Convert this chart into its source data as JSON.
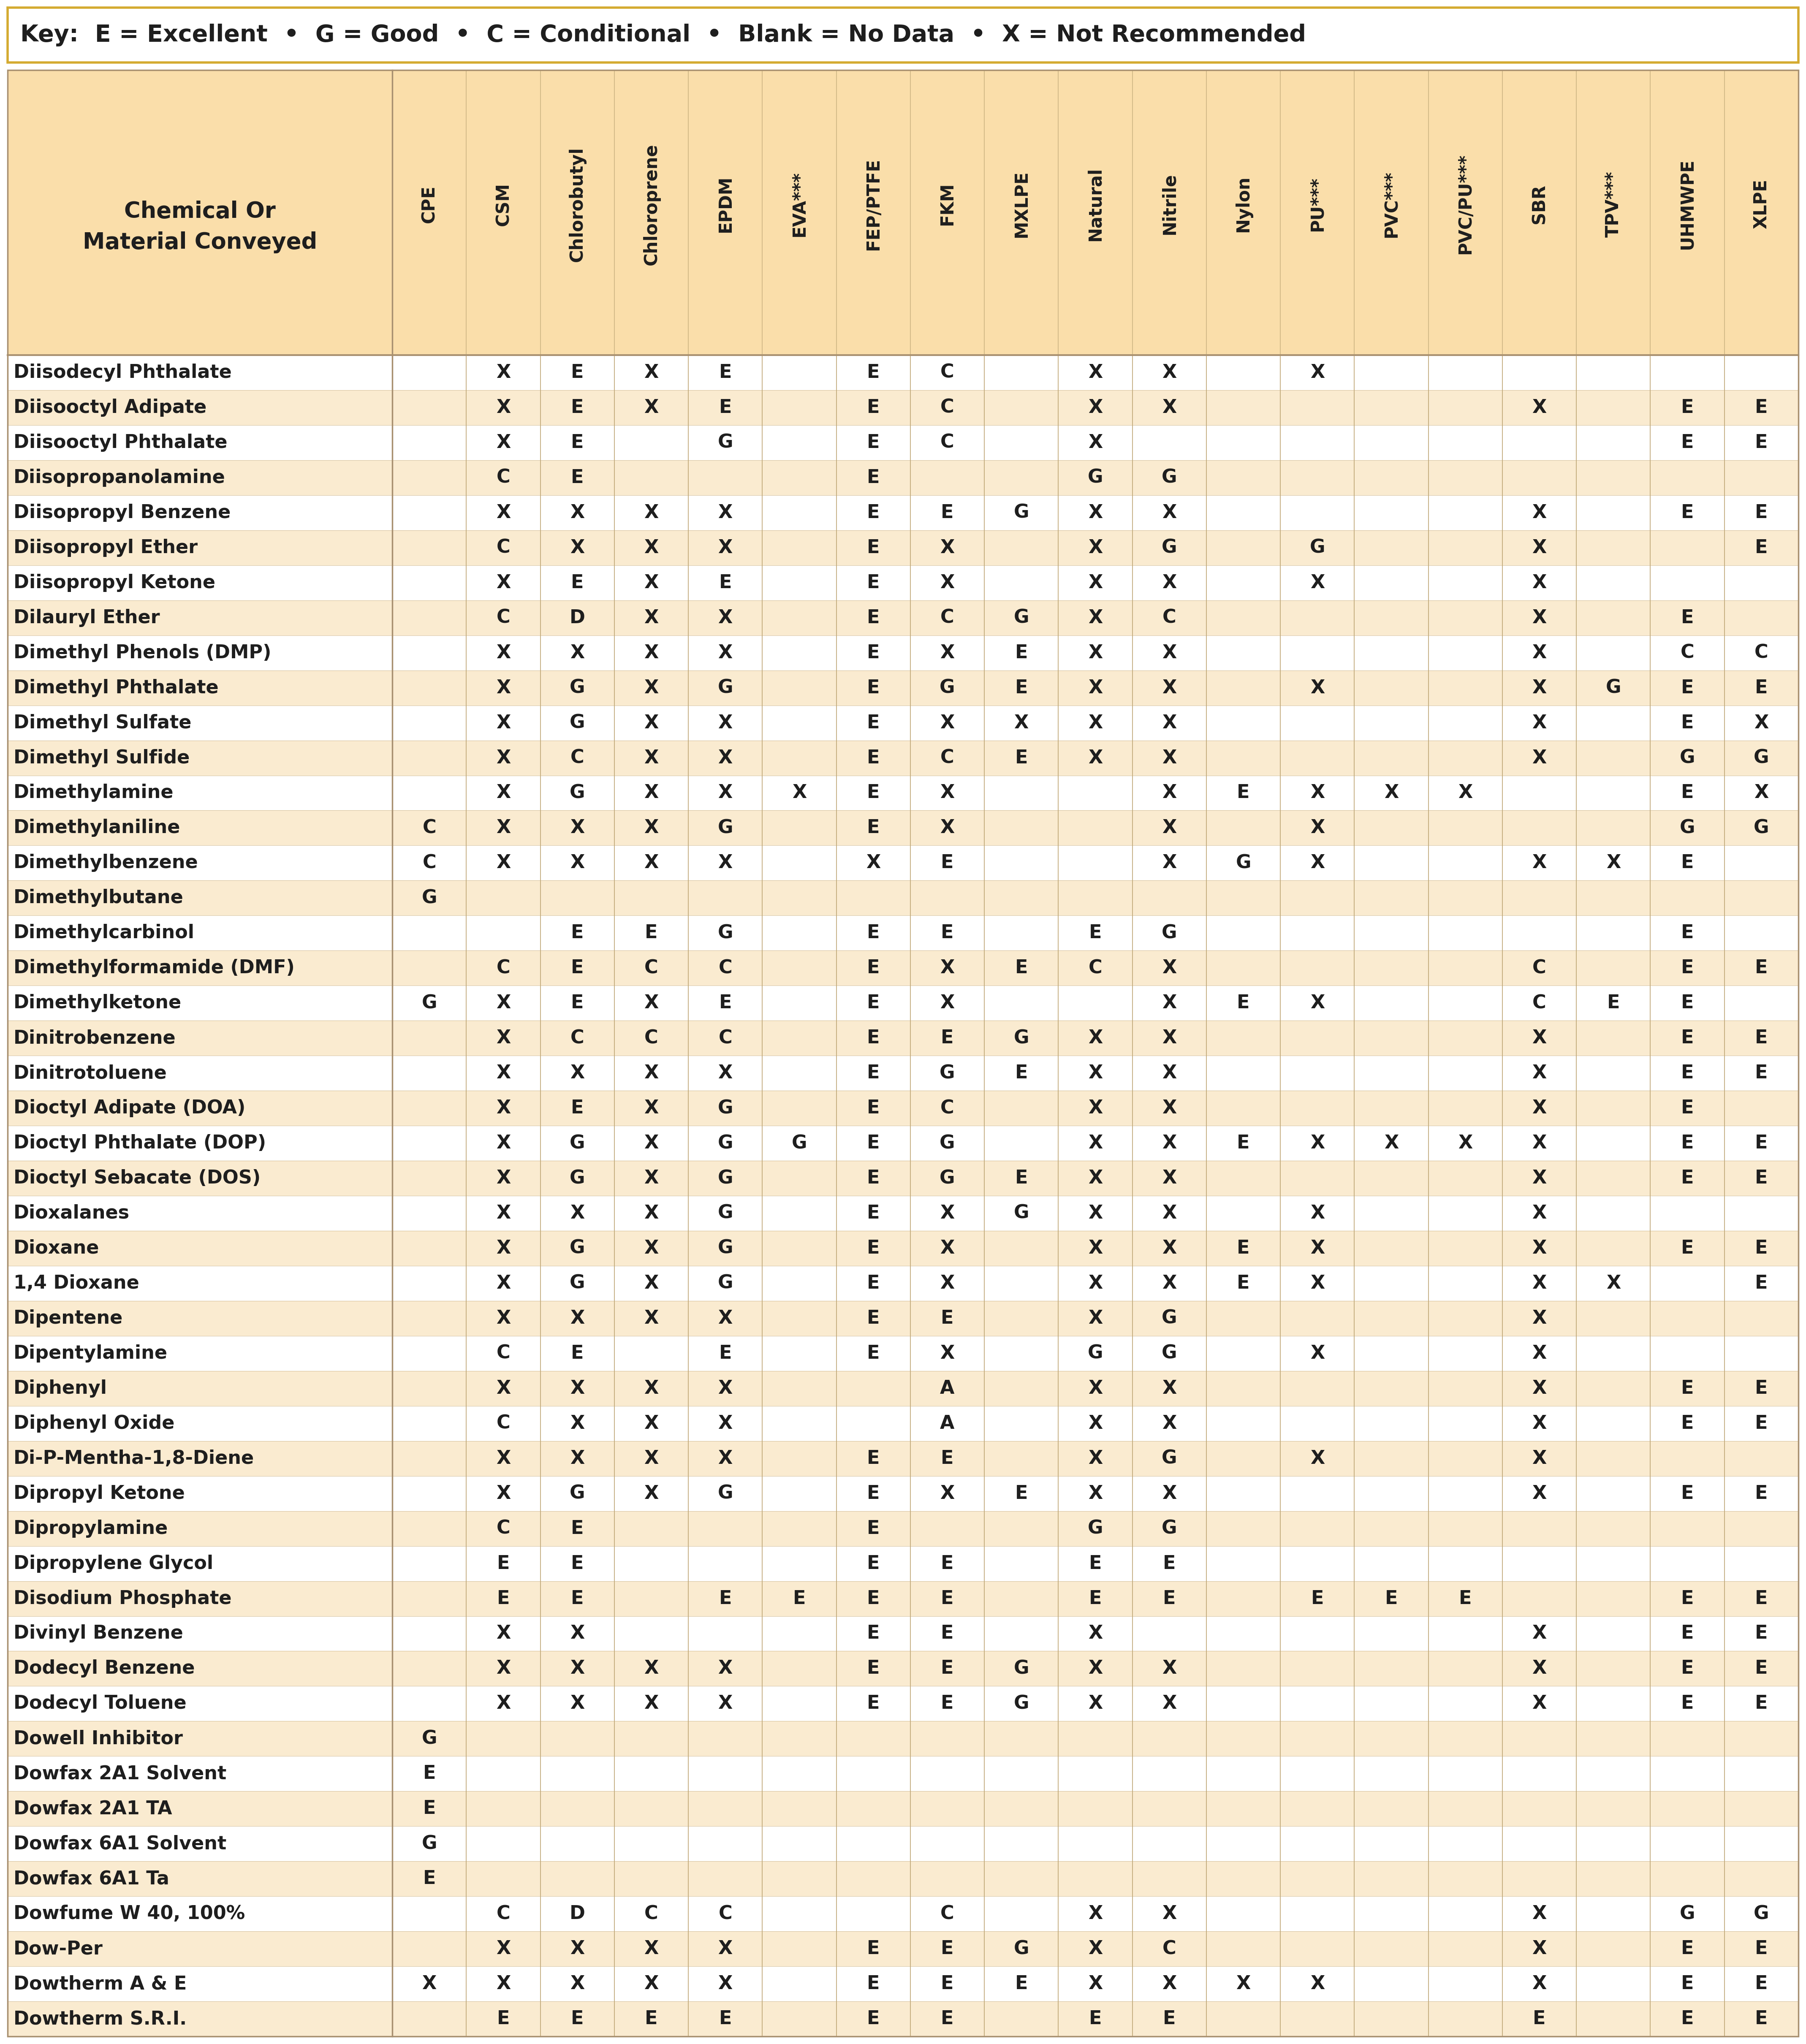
{
  "key_text": "Key:  E = Excellent  •  G = Good  •  C = Conditional  •  Blank = No Data  •  X = Not Recommended",
  "columns": [
    "CPE",
    "CSM",
    "Chlorobutyl",
    "Chloroprene",
    "EPDM",
    "EVA***",
    "FEP/PTFE",
    "FKM",
    "MXLPE",
    "Natural",
    "Nitrile",
    "Nylon",
    "PU***",
    "PVC***",
    "PVC/PU***",
    "SBR",
    "TPV***",
    "UHMWPE",
    "XLPE"
  ],
  "header_label": "Chemical Or\nMaterial Conveyed",
  "rows": [
    [
      "Diisodecyl Phthalate",
      "",
      "X",
      "E",
      "X",
      "E",
      "",
      "E",
      "C",
      "",
      "X",
      "X",
      "",
      "X",
      "",
      "",
      "",
      "",
      "",
      ""
    ],
    [
      "Diisooctyl Adipate",
      "",
      "X",
      "E",
      "X",
      "E",
      "",
      "E",
      "C",
      "",
      "X",
      "X",
      "",
      "",
      "",
      "",
      "X",
      "",
      "E",
      "E"
    ],
    [
      "Diisooctyl Phthalate",
      "",
      "X",
      "E",
      "",
      "G",
      "",
      "E",
      "C",
      "",
      "X",
      "",
      "",
      "",
      "",
      "",
      "",
      "",
      "E",
      "E"
    ],
    [
      "Diisopropanolamine",
      "",
      "C",
      "E",
      "",
      "",
      "",
      "E",
      "",
      "",
      "G",
      "G",
      "",
      "",
      "",
      "",
      "",
      "",
      "",
      ""
    ],
    [
      "Diisopropyl Benzene",
      "",
      "X",
      "X",
      "X",
      "X",
      "",
      "E",
      "E",
      "G",
      "X",
      "X",
      "",
      "",
      "",
      "",
      "X",
      "",
      "E",
      "E"
    ],
    [
      "Diisopropyl Ether",
      "",
      "C",
      "X",
      "X",
      "X",
      "",
      "E",
      "X",
      "",
      "X",
      "G",
      "",
      "G",
      "",
      "",
      "X",
      "",
      "",
      "E"
    ],
    [
      "Diisopropyl Ketone",
      "",
      "X",
      "E",
      "X",
      "E",
      "",
      "E",
      "X",
      "",
      "X",
      "X",
      "",
      "X",
      "",
      "",
      "X",
      "",
      "",
      ""
    ],
    [
      "Dilauryl Ether",
      "",
      "C",
      "D",
      "X",
      "X",
      "",
      "E",
      "C",
      "G",
      "X",
      "C",
      "",
      "",
      "",
      "",
      "X",
      "",
      "E",
      ""
    ],
    [
      "Dimethyl Phenols (DMP)",
      "",
      "X",
      "X",
      "X",
      "X",
      "",
      "E",
      "X",
      "E",
      "X",
      "X",
      "",
      "",
      "",
      "",
      "X",
      "",
      "C",
      "C"
    ],
    [
      "Dimethyl Phthalate",
      "",
      "X",
      "G",
      "X",
      "G",
      "",
      "E",
      "G",
      "E",
      "X",
      "X",
      "",
      "X",
      "",
      "",
      "X",
      "G",
      "E",
      "E"
    ],
    [
      "Dimethyl Sulfate",
      "",
      "X",
      "G",
      "X",
      "X",
      "",
      "E",
      "X",
      "X",
      "X",
      "X",
      "",
      "",
      "",
      "",
      "X",
      "",
      "E",
      "X"
    ],
    [
      "Dimethyl Sulfide",
      "",
      "X",
      "C",
      "X",
      "X",
      "",
      "E",
      "C",
      "E",
      "X",
      "X",
      "",
      "",
      "",
      "",
      "X",
      "",
      "G",
      "G"
    ],
    [
      "Dimethylamine",
      "",
      "X",
      "G",
      "X",
      "X",
      "X",
      "E",
      "X",
      "",
      "",
      "X",
      "E",
      "X",
      "X",
      "X",
      "",
      "",
      "E",
      "X"
    ],
    [
      "Dimethylaniline",
      "C",
      "X",
      "X",
      "X",
      "G",
      "",
      "E",
      "X",
      "",
      "",
      "X",
      "",
      "X",
      "",
      "",
      "",
      "",
      "G",
      "G"
    ],
    [
      "Dimethylbenzene",
      "C",
      "X",
      "X",
      "X",
      "X",
      "",
      "X",
      "E",
      "",
      "",
      "X",
      "G",
      "X",
      "",
      "",
      "X",
      "X",
      "E",
      ""
    ],
    [
      "Dimethylbutane",
      "G",
      "",
      "",
      "",
      "",
      "",
      "",
      "",
      "",
      "",
      "",
      "",
      "",
      "",
      "",
      "",
      "",
      "",
      ""
    ],
    [
      "Dimethylcarbinol",
      "",
      "",
      "E",
      "E",
      "G",
      "",
      "E",
      "E",
      "",
      "E",
      "G",
      "",
      "",
      "",
      "",
      "",
      "",
      "E",
      ""
    ],
    [
      "Dimethylformamide (DMF)",
      "",
      "C",
      "E",
      "C",
      "C",
      "",
      "E",
      "X",
      "E",
      "C",
      "X",
      "",
      "",
      "",
      "",
      "C",
      "",
      "E",
      "E"
    ],
    [
      "Dimethylketone",
      "G",
      "X",
      "E",
      "X",
      "E",
      "",
      "E",
      "X",
      "",
      "",
      "X",
      "E",
      "X",
      "",
      "",
      "C",
      "E",
      "E",
      ""
    ],
    [
      "Dinitrobenzene",
      "",
      "X",
      "C",
      "C",
      "C",
      "",
      "E",
      "E",
      "G",
      "X",
      "X",
      "",
      "",
      "",
      "",
      "X",
      "",
      "E",
      "E"
    ],
    [
      "Dinitrotoluene",
      "",
      "X",
      "X",
      "X",
      "X",
      "",
      "E",
      "G",
      "E",
      "X",
      "X",
      "",
      "",
      "",
      "",
      "X",
      "",
      "E",
      "E"
    ],
    [
      "Dioctyl Adipate (DOA)",
      "",
      "X",
      "E",
      "X",
      "G",
      "",
      "E",
      "C",
      "",
      "X",
      "X",
      "",
      "",
      "",
      "",
      "X",
      "",
      "E",
      ""
    ],
    [
      "Dioctyl Phthalate (DOP)",
      "",
      "X",
      "G",
      "X",
      "G",
      "G",
      "E",
      "G",
      "",
      "X",
      "X",
      "E",
      "X",
      "X",
      "X",
      "X",
      "",
      "E",
      "E"
    ],
    [
      "Dioctyl Sebacate (DOS)",
      "",
      "X",
      "G",
      "X",
      "G",
      "",
      "E",
      "G",
      "E",
      "X",
      "X",
      "",
      "",
      "",
      "",
      "X",
      "",
      "E",
      "E"
    ],
    [
      "Dioxalanes",
      "",
      "X",
      "X",
      "X",
      "G",
      "",
      "E",
      "X",
      "G",
      "X",
      "X",
      "",
      "X",
      "",
      "",
      "X",
      "",
      "",
      ""
    ],
    [
      "Dioxane",
      "",
      "X",
      "G",
      "X",
      "G",
      "",
      "E",
      "X",
      "",
      "X",
      "X",
      "E",
      "X",
      "",
      "",
      "X",
      "",
      "E",
      "E"
    ],
    [
      "1,4 Dioxane",
      "",
      "X",
      "G",
      "X",
      "G",
      "",
      "E",
      "X",
      "",
      "X",
      "X",
      "E",
      "X",
      "",
      "",
      "X",
      "X",
      "",
      "E"
    ],
    [
      "Dipentene",
      "",
      "X",
      "X",
      "X",
      "X",
      "",
      "E",
      "E",
      "",
      "X",
      "G",
      "",
      "",
      "",
      "",
      "X",
      "",
      "",
      ""
    ],
    [
      "Dipentylamine",
      "",
      "C",
      "E",
      "",
      "E",
      "",
      "E",
      "X",
      "",
      "G",
      "G",
      "",
      "X",
      "",
      "",
      "X",
      "",
      "",
      ""
    ],
    [
      "Diphenyl",
      "",
      "X",
      "X",
      "X",
      "X",
      "",
      "",
      "A",
      "",
      "X",
      "X",
      "",
      "",
      "",
      "",
      "X",
      "",
      "E",
      "E"
    ],
    [
      "Diphenyl Oxide",
      "",
      "C",
      "X",
      "X",
      "X",
      "",
      "",
      "A",
      "",
      "X",
      "X",
      "",
      "",
      "",
      "",
      "X",
      "",
      "E",
      "E"
    ],
    [
      "Di-P-Mentha-1,8-Diene",
      "",
      "X",
      "X",
      "X",
      "X",
      "",
      "E",
      "E",
      "",
      "X",
      "G",
      "",
      "X",
      "",
      "",
      "X",
      "",
      "",
      ""
    ],
    [
      "Dipropyl Ketone",
      "",
      "X",
      "G",
      "X",
      "G",
      "",
      "E",
      "X",
      "E",
      "X",
      "X",
      "",
      "",
      "",
      "",
      "X",
      "",
      "E",
      "E"
    ],
    [
      "Dipropylamine",
      "",
      "C",
      "E",
      "",
      "",
      "",
      "E",
      "",
      "",
      "G",
      "G",
      "",
      "",
      "",
      "",
      "",
      "",
      "",
      ""
    ],
    [
      "Dipropylene Glycol",
      "",
      "E",
      "E",
      "",
      "",
      "",
      "E",
      "E",
      "",
      "E",
      "E",
      "",
      "",
      "",
      "",
      "",
      "",
      "",
      ""
    ],
    [
      "Disodium Phosphate",
      "",
      "E",
      "E",
      "",
      "E",
      "E",
      "E",
      "E",
      "",
      "E",
      "E",
      "",
      "E",
      "E",
      "E",
      "",
      "",
      "E",
      "E"
    ],
    [
      "Divinyl Benzene",
      "",
      "X",
      "X",
      "",
      "",
      "",
      "E",
      "E",
      "",
      "X",
      "",
      "",
      "",
      "",
      "",
      "X",
      "",
      "E",
      "E"
    ],
    [
      "Dodecyl Benzene",
      "",
      "X",
      "X",
      "X",
      "X",
      "",
      "E",
      "E",
      "G",
      "X",
      "X",
      "",
      "",
      "",
      "",
      "X",
      "",
      "E",
      "E"
    ],
    [
      "Dodecyl Toluene",
      "",
      "X",
      "X",
      "X",
      "X",
      "",
      "E",
      "E",
      "G",
      "X",
      "X",
      "",
      "",
      "",
      "",
      "X",
      "",
      "E",
      "E"
    ],
    [
      "Dowell Inhibitor",
      "G",
      "",
      "",
      "",
      "",
      "",
      "",
      "",
      "",
      "",
      "",
      "",
      "",
      "",
      "",
      "",
      "",
      "",
      ""
    ],
    [
      "Dowfax 2A1 Solvent",
      "E",
      "",
      "",
      "",
      "",
      "",
      "",
      "",
      "",
      "",
      "",
      "",
      "",
      "",
      "",
      "",
      "",
      "",
      ""
    ],
    [
      "Dowfax 2A1 TA",
      "E",
      "",
      "",
      "",
      "",
      "",
      "",
      "",
      "",
      "",
      "",
      "",
      "",
      "",
      "",
      "",
      "",
      "",
      ""
    ],
    [
      "Dowfax 6A1 Solvent",
      "G",
      "",
      "",
      "",
      "",
      "",
      "",
      "",
      "",
      "",
      "",
      "",
      "",
      "",
      "",
      "",
      "",
      "",
      ""
    ],
    [
      "Dowfax 6A1 Ta",
      "E",
      "",
      "",
      "",
      "",
      "",
      "",
      "",
      "",
      "",
      "",
      "",
      "",
      "",
      "",
      "",
      "",
      "",
      ""
    ],
    [
      "Dowfume W 40, 100%",
      "",
      "C",
      "D",
      "C",
      "C",
      "",
      "",
      "C",
      "",
      "X",
      "X",
      "",
      "",
      "",
      "",
      "X",
      "",
      "G",
      "G"
    ],
    [
      "Dow-Per",
      "",
      "X",
      "X",
      "X",
      "X",
      "",
      "E",
      "E",
      "G",
      "X",
      "C",
      "",
      "",
      "",
      "",
      "X",
      "",
      "E",
      "E"
    ],
    [
      "Dowtherm A & E",
      "X",
      "X",
      "X",
      "X",
      "X",
      "",
      "E",
      "E",
      "E",
      "X",
      "X",
      "X",
      "X",
      "",
      "",
      "X",
      "",
      "E",
      "E"
    ],
    [
      "Dowtherm S.R.I.",
      "",
      "E",
      "E",
      "E",
      "E",
      "",
      "E",
      "E",
      "",
      "E",
      "E",
      "",
      "",
      "",
      "",
      "E",
      "",
      "E",
      "E"
    ]
  ],
  "colors": {
    "header_bg": "#F5C97A",
    "header_bg_light": "#FADEAA",
    "table_header_bg": "#F5C97A",
    "row_even_bg": "#FFFFFF",
    "row_odd_bg": "#FAEBD0",
    "key_border": "#D4AA30",
    "key_bg": "#FFFFFF",
    "outer_border": "#A89070",
    "col_border": "#C0A878",
    "text_color": "#1E1E1E",
    "key_text_color": "#1E1E1E"
  },
  "font_sizes": {
    "key": 40,
    "header_main": 38,
    "col_header": 30,
    "row_label": 32,
    "cell": 32
  }
}
